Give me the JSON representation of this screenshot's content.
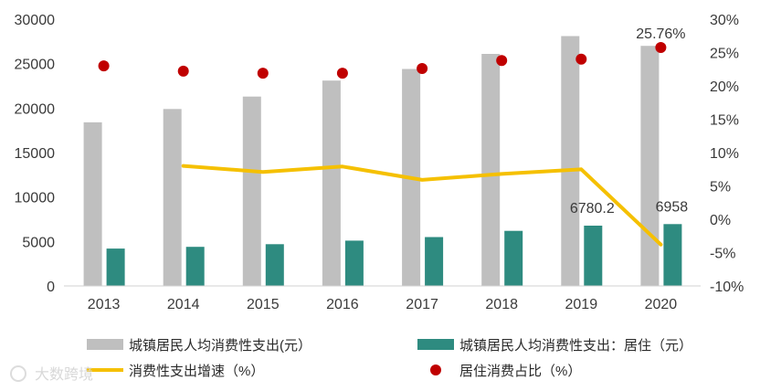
{
  "chart_data": {
    "type": "bar",
    "categories": [
      "2013",
      "2014",
      "2015",
      "2016",
      "2017",
      "2018",
      "2019",
      "2020"
    ],
    "series": [
      {
        "name": "城镇居民人均消费性支出(元）",
        "kind": "bar",
        "axis": "left",
        "color": "#bfbfbf",
        "values": [
          18400,
          19900,
          21300,
          23100,
          24400,
          26100,
          28100,
          27000
        ]
      },
      {
        "name": "城镇居民人均消费性支出：居住（元）",
        "kind": "bar",
        "axis": "left",
        "color": "#2e8b80",
        "values": [
          4200,
          4400,
          4700,
          5100,
          5500,
          6200,
          6780.2,
          6958
        ]
      },
      {
        "name": "消费性支出增速（%）",
        "kind": "line",
        "axis": "right",
        "color": "#f5c000",
        "values": [
          null,
          8.0,
          7.1,
          7.9,
          5.9,
          6.8,
          7.5,
          -3.8
        ]
      },
      {
        "name": "居住消费占比（%）",
        "kind": "scatter",
        "axis": "right",
        "color": "#c00000",
        "values": [
          23.0,
          22.2,
          21.9,
          21.9,
          22.6,
          23.8,
          24.0,
          25.76
        ]
      }
    ],
    "y_left": {
      "min": 0,
      "max": 30000,
      "ticks": [
        "0",
        "5000",
        "10000",
        "15000",
        "20000",
        "25000",
        "30000"
      ]
    },
    "y_right": {
      "min": -10,
      "max": 30,
      "ticks": [
        "-10%",
        "-5%",
        "0%",
        "5%",
        "10%",
        "15%",
        "20%",
        "25%",
        "30%"
      ]
    },
    "data_labels": [
      {
        "text": "25.76%",
        "series": 3,
        "index": 7
      },
      {
        "text": "6780.2",
        "series": 1,
        "index": 6
      },
      {
        "text": "6958",
        "series": 1,
        "index": 7
      }
    ],
    "grid": false,
    "legend_position": "bottom"
  },
  "watermark": "大数跨境"
}
